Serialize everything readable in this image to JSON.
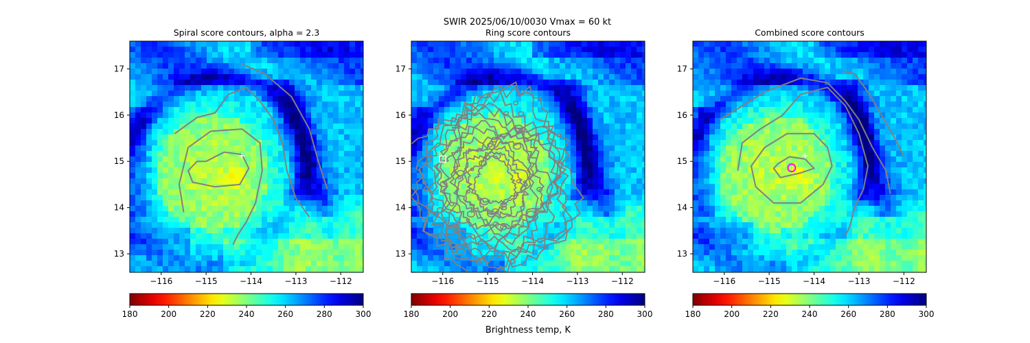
{
  "suptitle": "SWIR  2025/06/10/0030    Vmax = 60 kt",
  "colorbar_label": "Brightness temp, K",
  "colormap": "jet_r",
  "contour_color": "#808080",
  "chart_data": [
    {
      "type": "heatmap",
      "title": "Spiral score contours, alpha =  2.3",
      "xlim": [
        -116.7,
        -111.5
      ],
      "ylim": [
        12.6,
        17.6
      ],
      "xticks": [
        -116,
        -115,
        -114,
        -113,
        -112
      ],
      "xtick_labels": [
        "−116",
        "−115",
        "−114",
        "−113",
        "−112"
      ],
      "yticks": [
        13,
        14,
        15,
        16,
        17
      ],
      "ytick_labels": [
        "13",
        "14",
        "15",
        "16",
        "17"
      ],
      "colorbar": {
        "range": [
          180,
          300
        ],
        "ticks": [
          "180",
          "200",
          "220",
          "240",
          "260",
          "280",
          "300"
        ]
      },
      "markers": [
        {
          "kind": "plus",
          "lon": -114.2,
          "lat": 15.12,
          "color": "#ffffff"
        }
      ],
      "contours": [
        [
          [
            -115.0,
            15.0
          ],
          [
            -114.6,
            15.2
          ],
          [
            -114.2,
            15.15
          ],
          [
            -114.05,
            14.85
          ],
          [
            -114.25,
            14.5
          ],
          [
            -114.8,
            14.45
          ],
          [
            -115.3,
            14.55
          ],
          [
            -115.4,
            14.8
          ],
          [
            -115.2,
            15.0
          ],
          [
            -115.0,
            15.0
          ]
        ],
        [
          [
            -115.5,
            13.9
          ],
          [
            -115.6,
            14.5
          ],
          [
            -115.4,
            15.3
          ],
          [
            -114.9,
            15.65
          ],
          [
            -114.2,
            15.7
          ],
          [
            -113.8,
            15.4
          ],
          [
            -113.75,
            14.8
          ],
          [
            -113.9,
            14.1
          ],
          [
            -114.1,
            13.7
          ],
          [
            -114.3,
            13.4
          ],
          [
            -114.4,
            13.2
          ]
        ],
        [
          [
            -115.7,
            15.6
          ],
          [
            -115.2,
            15.95
          ],
          [
            -114.8,
            16.05
          ],
          [
            -114.5,
            16.45
          ],
          [
            -114.1,
            16.6
          ],
          [
            -113.8,
            16.3
          ],
          [
            -113.5,
            15.9
          ],
          [
            -113.3,
            15.4
          ],
          [
            -113.2,
            14.8
          ],
          [
            -113.0,
            14.2
          ],
          [
            -112.7,
            13.8
          ]
        ],
        [
          [
            -114.2,
            17.1
          ],
          [
            -113.7,
            16.9
          ],
          [
            -113.1,
            16.4
          ],
          [
            -112.7,
            15.7
          ],
          [
            -112.5,
            15.0
          ],
          [
            -112.3,
            14.4
          ]
        ]
      ]
    },
    {
      "type": "heatmap",
      "title": "Ring score contours",
      "xlim": [
        -116.7,
        -111.5
      ],
      "ylim": [
        12.6,
        17.6
      ],
      "xticks": [
        -116,
        -115,
        -114,
        -113,
        -112
      ],
      "xtick_labels": [
        "−116",
        "−115",
        "−114",
        "−113",
        "−112"
      ],
      "yticks": [
        13,
        14,
        15,
        16,
        17
      ],
      "ytick_labels": [
        "13",
        "14",
        "15",
        "16",
        "17"
      ],
      "colorbar": {
        "range": [
          180,
          300
        ],
        "ticks": [
          "180",
          "200",
          "220",
          "240",
          "260",
          "280",
          "300"
        ]
      },
      "markers": [
        {
          "kind": "square",
          "lon": -116.0,
          "lat": 15.05,
          "color": "#ffffff"
        }
      ],
      "ring": {
        "lon": -114.85,
        "lat": 14.55,
        "rx": 1.75,
        "ry": 1.9
      }
    },
    {
      "type": "heatmap",
      "title": "Combined score contours",
      "xlim": [
        -116.7,
        -111.5
      ],
      "ylim": [
        12.6,
        17.6
      ],
      "xticks": [
        -116,
        -115,
        -114,
        -113,
        -112
      ],
      "xtick_labels": [
        "−116",
        "−115",
        "−114",
        "−113",
        "−112"
      ],
      "yticks": [
        13,
        14,
        15,
        16,
        17
      ],
      "ytick_labels": [
        "13",
        "14",
        "15",
        "16",
        "17"
      ],
      "colorbar": {
        "range": [
          180,
          300
        ],
        "ticks": [
          "180",
          "200",
          "220",
          "240",
          "260",
          "280",
          "300"
        ]
      },
      "markers": [
        {
          "kind": "plus",
          "lon": -114.2,
          "lat": 15.12,
          "color": "#ffffff"
        },
        {
          "kind": "circle",
          "lon": -114.5,
          "lat": 14.86,
          "color": "#ff00ff"
        }
      ],
      "contours": [
        [
          [
            -114.8,
            14.95
          ],
          [
            -114.55,
            15.1
          ],
          [
            -114.2,
            15.05
          ],
          [
            -114.0,
            14.85
          ],
          [
            -114.3,
            14.75
          ],
          [
            -114.75,
            14.65
          ],
          [
            -114.9,
            14.85
          ],
          [
            -114.8,
            14.95
          ]
        ],
        [
          [
            -115.3,
            14.45
          ],
          [
            -115.4,
            14.9
          ],
          [
            -115.1,
            15.3
          ],
          [
            -114.6,
            15.6
          ],
          [
            -114.0,
            15.6
          ],
          [
            -113.7,
            15.3
          ],
          [
            -113.6,
            14.9
          ],
          [
            -113.8,
            14.5
          ],
          [
            -114.3,
            14.1
          ],
          [
            -114.9,
            14.1
          ],
          [
            -115.3,
            14.45
          ]
        ],
        [
          [
            -115.7,
            14.8
          ],
          [
            -115.6,
            15.4
          ],
          [
            -115.2,
            15.7
          ],
          [
            -114.7,
            16.0
          ],
          [
            -114.3,
            16.45
          ],
          [
            -113.7,
            16.6
          ],
          [
            -113.3,
            16.2
          ],
          [
            -113.0,
            15.6
          ],
          [
            -112.8,
            14.9
          ],
          [
            -112.9,
            14.4
          ],
          [
            -113.1,
            14.0
          ],
          [
            -113.2,
            13.6
          ],
          [
            -113.3,
            13.4
          ]
        ],
        [
          [
            -116.1,
            15.9
          ],
          [
            -115.6,
            16.2
          ],
          [
            -115.1,
            16.5
          ],
          [
            -114.3,
            16.8
          ],
          [
            -113.7,
            16.7
          ],
          [
            -113.3,
            16.3
          ],
          [
            -113.0,
            15.9
          ],
          [
            -112.7,
            15.3
          ],
          [
            -112.4,
            14.8
          ],
          [
            -112.3,
            14.3
          ]
        ],
        [
          [
            -113.4,
            16.95
          ],
          [
            -113.1,
            16.9
          ],
          [
            -112.8,
            16.5
          ],
          [
            -112.5,
            16.0
          ],
          [
            -112.2,
            15.5
          ],
          [
            -112.0,
            15.1
          ]
        ]
      ]
    }
  ]
}
